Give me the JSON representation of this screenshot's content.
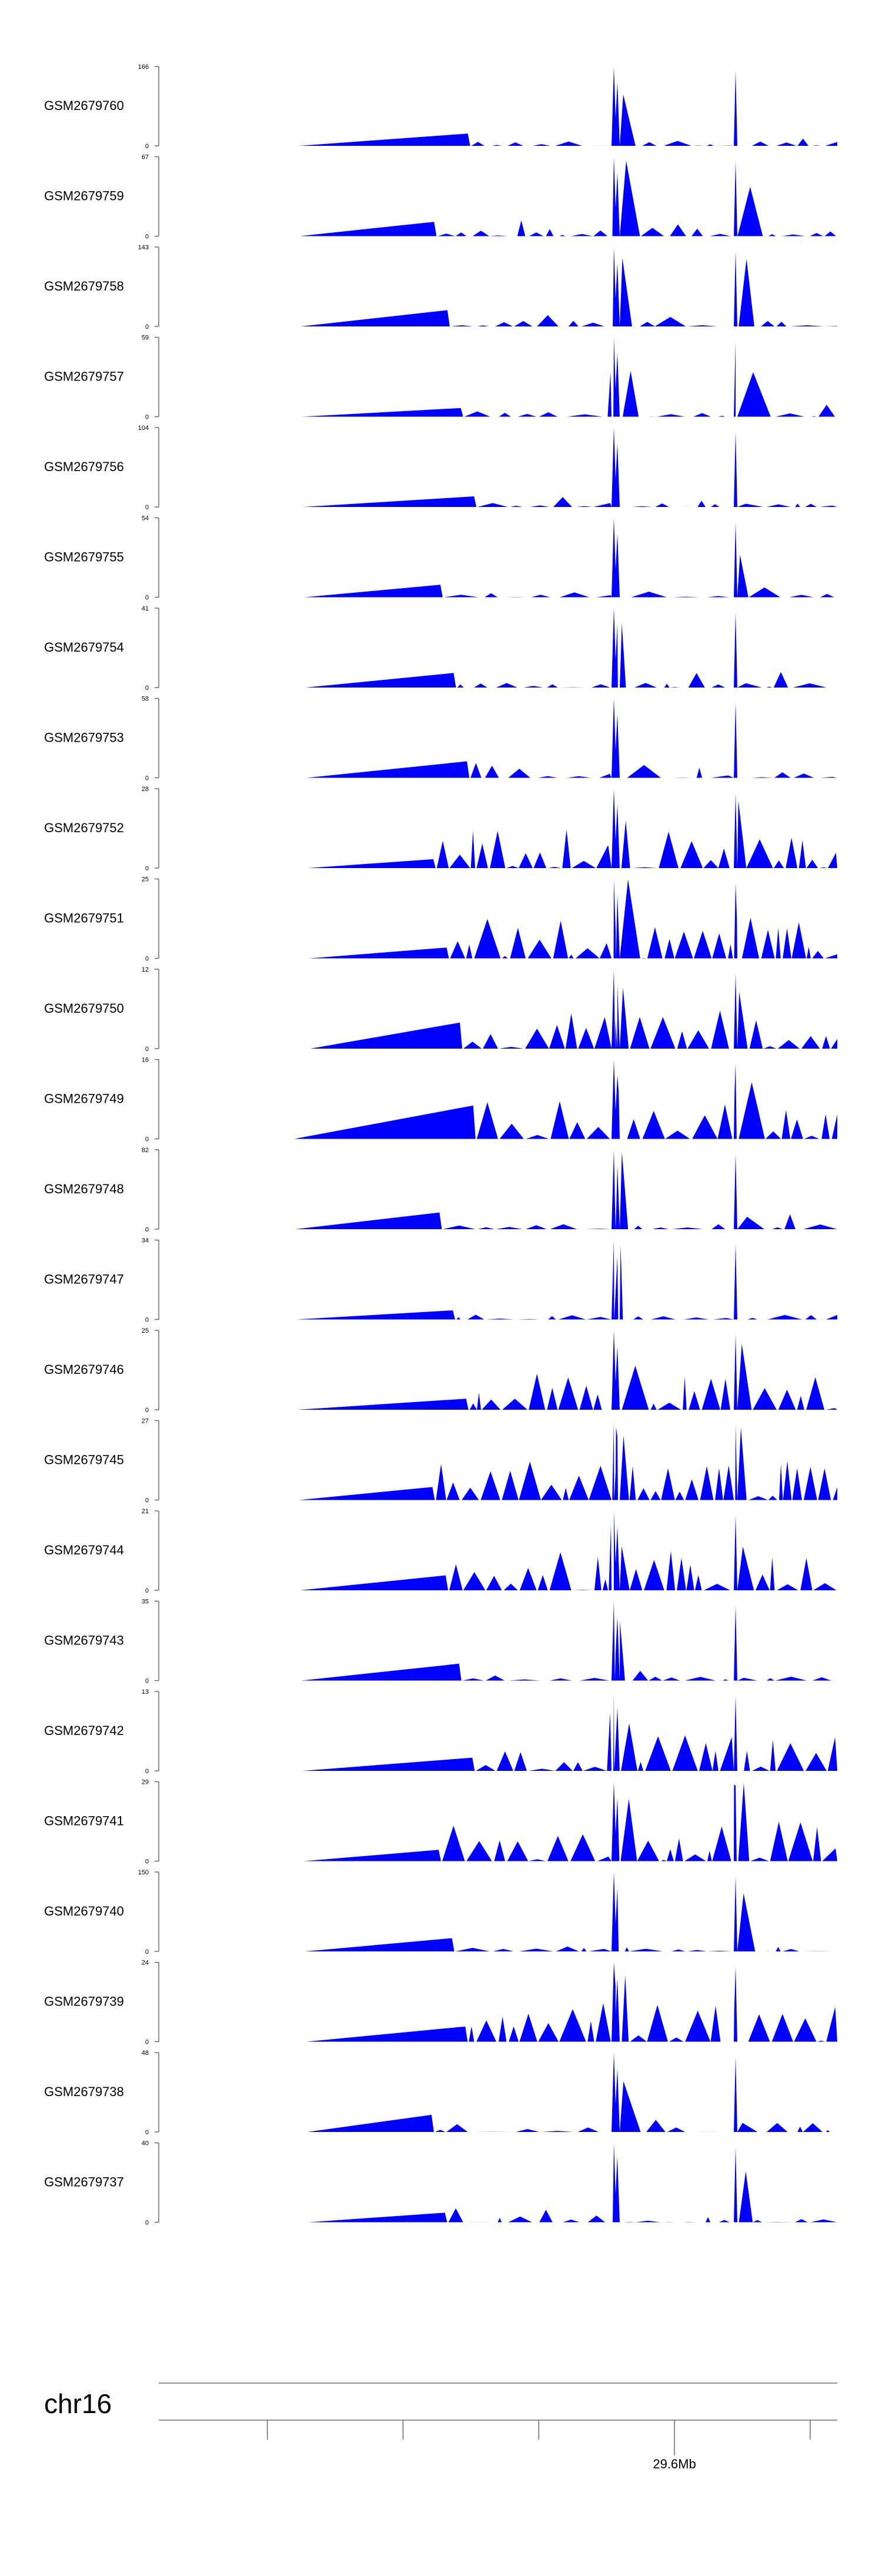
{
  "chart_data": {
    "type": "area",
    "title": "",
    "xlabel": "",
    "ylabel": "",
    "fill_color": "#0000ff",
    "x_range_mb": [
      29.41,
      29.66
    ],
    "tracks": [
      {
        "name": "GSM2679760",
        "ymax": 166
      },
      {
        "name": "GSM2679759",
        "ymax": 67
      },
      {
        "name": "GSM2679758",
        "ymax": 143
      },
      {
        "name": "GSM2679757",
        "ymax": 59
      },
      {
        "name": "GSM2679756",
        "ymax": 104
      },
      {
        "name": "GSM2679755",
        "ymax": 54
      },
      {
        "name": "GSM2679754",
        "ymax": 41
      },
      {
        "name": "GSM2679753",
        "ymax": 58
      },
      {
        "name": "GSM2679752",
        "ymax": 28
      },
      {
        "name": "GSM2679751",
        "ymax": 25
      },
      {
        "name": "GSM2679750",
        "ymax": 12
      },
      {
        "name": "GSM2679749",
        "ymax": 16
      },
      {
        "name": "GSM2679748",
        "ymax": 82
      },
      {
        "name": "GSM2679747",
        "ymax": 34
      },
      {
        "name": "GSM2679746",
        "ymax": 25
      },
      {
        "name": "GSM2679745",
        "ymax": 27
      },
      {
        "name": "GSM2679744",
        "ymax": 21
      },
      {
        "name": "GSM2679743",
        "ymax": 35
      },
      {
        "name": "GSM2679742",
        "ymax": 13
      },
      {
        "name": "GSM2679741",
        "ymax": 29
      },
      {
        "name": "GSM2679740",
        "ymax": 150
      },
      {
        "name": "GSM2679739",
        "ymax": 24
      },
      {
        "name": "GSM2679738",
        "ymax": 48
      },
      {
        "name": "GSM2679737",
        "ymax": 40
      }
    ],
    "y_min_label": "0",
    "chromosome": "chr16",
    "position_label": "29.6Mb",
    "position_mb": 29.6,
    "tick_positions_mb": [
      29.45,
      29.5,
      29.55,
      29.6,
      29.65
    ]
  }
}
